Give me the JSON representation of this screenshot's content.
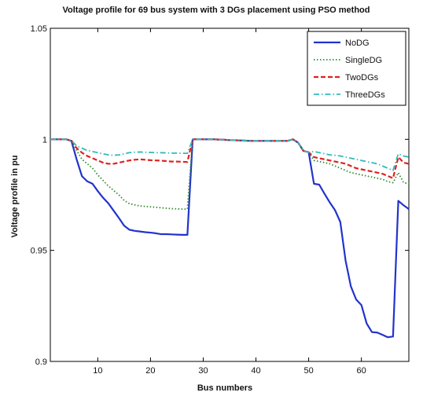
{
  "chart_data": {
    "type": "line",
    "title": "Voltage profile for 69 bus system with 3 DGs placement using PSO method",
    "xlabel": "Bus numbers",
    "ylabel": "Voltage profile in pu",
    "xlim": [
      1,
      69
    ],
    "ylim": [
      0.9,
      1.05
    ],
    "x_ticks": [
      10,
      20,
      30,
      40,
      50,
      60
    ],
    "x_tick_labels": [
      "10",
      "20",
      "30",
      "40",
      "50",
      "60"
    ],
    "y_ticks": [
      0.9,
      0.95,
      1,
      1.05
    ],
    "y_tick_labels": [
      "0.9",
      "0.95",
      "1",
      "1.05"
    ],
    "grid": false,
    "legend_position": "top-right",
    "x": [
      1,
      2,
      3,
      4,
      5,
      6,
      7,
      8,
      9,
      10,
      11,
      12,
      13,
      14,
      15,
      16,
      17,
      18,
      19,
      20,
      21,
      22,
      23,
      24,
      25,
      26,
      27,
      28,
      29,
      30,
      31,
      32,
      33,
      34,
      35,
      36,
      37,
      38,
      39,
      40,
      41,
      42,
      43,
      44,
      45,
      46,
      47,
      48,
      49,
      50,
      51,
      52,
      53,
      54,
      55,
      56,
      57,
      58,
      59,
      60,
      61,
      62,
      63,
      64,
      65,
      66,
      67,
      68,
      69
    ],
    "series": [
      {
        "name": "NoDG",
        "color": "#2233cc",
        "dash": "solid",
        "values": [
          1.0,
          1.0,
          1.0,
          1.0,
          0.9993,
          0.9909,
          0.9834,
          0.9811,
          0.98,
          0.9767,
          0.9737,
          0.9712,
          0.9679,
          0.9646,
          0.9611,
          0.9593,
          0.9588,
          0.9585,
          0.9582,
          0.958,
          0.9577,
          0.9573,
          0.9573,
          0.9572,
          0.9571,
          0.957,
          0.957,
          1.0,
          1.0,
          1.0,
          1.0,
          1.0,
          0.9999,
          0.9998,
          0.9996,
          0.9996,
          0.9995,
          0.9994,
          0.9993,
          0.9993,
          0.9993,
          0.9993,
          0.9993,
          0.9993,
          0.9993,
          0.9993,
          1.0,
          0.9985,
          0.9948,
          0.9942,
          0.98,
          0.9796,
          0.9755,
          0.9716,
          0.9681,
          0.9628,
          0.9454,
          0.9338,
          0.9279,
          0.9254,
          0.9171,
          0.9132,
          0.913,
          0.912,
          0.9109,
          0.9112,
          0.9723,
          0.9703,
          0.9686
        ]
      },
      {
        "name": "SingleDG",
        "color": "#2e8b2e",
        "dash": "dotted",
        "values": [
          1.0,
          1.0,
          1.0,
          1.0,
          0.9995,
          0.995,
          0.991,
          0.989,
          0.987,
          0.984,
          0.9815,
          0.979,
          0.977,
          0.975,
          0.9725,
          0.971,
          0.9705,
          0.97,
          0.9698,
          0.9696,
          0.9694,
          0.9692,
          0.969,
          0.9688,
          0.9687,
          0.9686,
          0.9686,
          1.0,
          1.0,
          1.0,
          1.0,
          1.0,
          0.9999,
          0.9998,
          0.9996,
          0.9996,
          0.9995,
          0.9994,
          0.9993,
          0.9993,
          0.9993,
          0.9993,
          0.9993,
          0.9993,
          0.9993,
          0.9993,
          1.0,
          0.9985,
          0.9948,
          0.9942,
          0.9905,
          0.99,
          0.9895,
          0.989,
          0.988,
          0.987,
          0.986,
          0.985,
          0.9845,
          0.984,
          0.9835,
          0.983,
          0.9825,
          0.982,
          0.981,
          0.9805,
          0.985,
          0.9805,
          0.98
        ]
      },
      {
        "name": "TwoDGs",
        "color": "#dd2222",
        "dash": "dashed",
        "values": [
          1.0,
          1.0,
          1.0,
          1.0,
          0.9995,
          0.996,
          0.994,
          0.9925,
          0.9915,
          0.9905,
          0.9895,
          0.989,
          0.989,
          0.9895,
          0.99,
          0.9905,
          0.9908,
          0.991,
          0.9908,
          0.9906,
          0.9905,
          0.9904,
          0.9902,
          0.99,
          0.99,
          0.9899,
          0.9898,
          1.0,
          1.0,
          1.0,
          1.0,
          1.0,
          0.9999,
          0.9998,
          0.9996,
          0.9996,
          0.9995,
          0.9994,
          0.9993,
          0.9993,
          0.9993,
          0.9993,
          0.9993,
          0.9993,
          0.9993,
          0.9993,
          1.0,
          0.9985,
          0.9948,
          0.9942,
          0.992,
          0.9915,
          0.991,
          0.9905,
          0.99,
          0.9895,
          0.989,
          0.988,
          0.987,
          0.9865,
          0.986,
          0.9855,
          0.985,
          0.9845,
          0.9835,
          0.9825,
          0.992,
          0.9895,
          0.989
        ]
      },
      {
        "name": "ThreeDGs",
        "color": "#33bbbb",
        "dash": "dashdot",
        "values": [
          1.0,
          1.0,
          1.0,
          1.0,
          0.9995,
          0.997,
          0.996,
          0.995,
          0.9945,
          0.994,
          0.9935,
          0.993,
          0.9928,
          0.993,
          0.9935,
          0.994,
          0.9942,
          0.9943,
          0.9942,
          0.9941,
          0.994,
          0.994,
          0.9939,
          0.9938,
          0.9938,
          0.9937,
          0.9937,
          1.0,
          1.0,
          1.0,
          1.0,
          1.0,
          0.9999,
          0.9998,
          0.9996,
          0.9996,
          0.9995,
          0.9994,
          0.9993,
          0.9993,
          0.9993,
          0.9993,
          0.9993,
          0.9993,
          0.9993,
          0.9993,
          1.0,
          0.9985,
          0.9948,
          0.9942,
          0.9945,
          0.994,
          0.9935,
          0.993,
          0.9928,
          0.9925,
          0.992,
          0.9915,
          0.991,
          0.9905,
          0.99,
          0.9895,
          0.989,
          0.988,
          0.987,
          0.986,
          0.9935,
          0.9925,
          0.992
        ]
      }
    ]
  }
}
